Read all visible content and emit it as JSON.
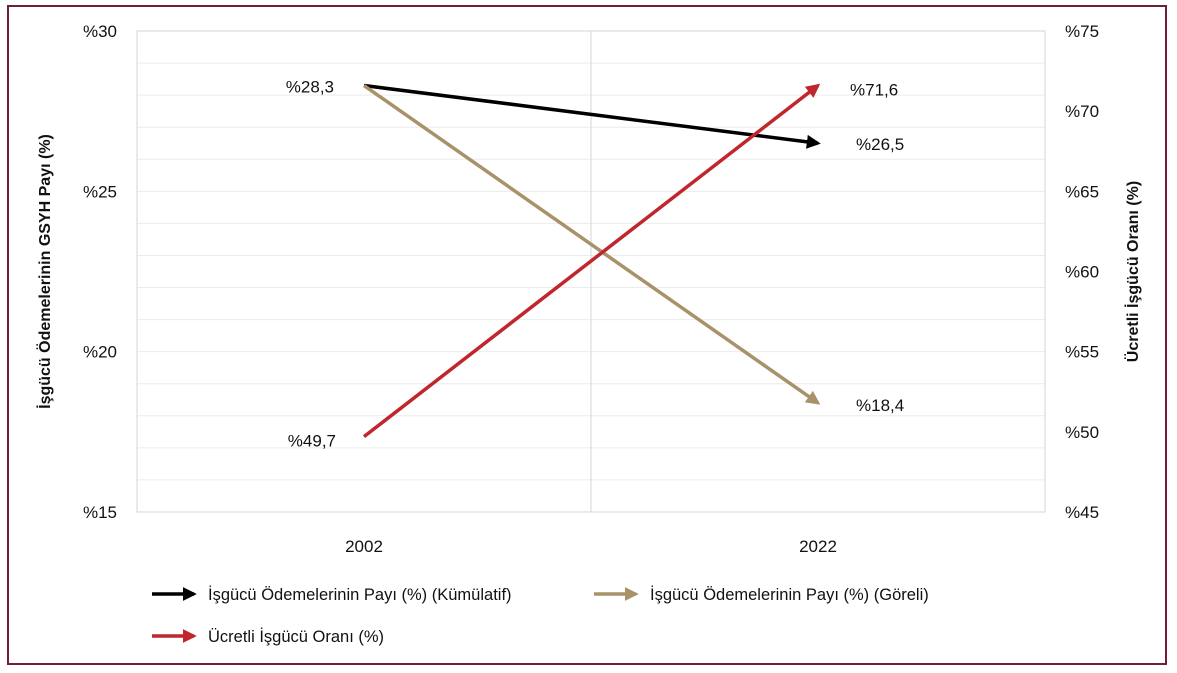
{
  "chart_data": {
    "type": "line",
    "categories": [
      "2002",
      "2022"
    ],
    "left_axis": {
      "title": "İşgücü Ödemelerinin GSYH Payı (%)",
      "min": 15,
      "max": 30,
      "step": 5,
      "tick_labels": [
        "%15",
        "%20",
        "%25",
        "%30"
      ]
    },
    "right_axis": {
      "title": "Ücretli İşgücü Oranı (%)",
      "min": 45,
      "max": 75,
      "step": 5,
      "tick_labels": [
        "%45",
        "%50",
        "%55",
        "%60",
        "%65",
        "%70",
        "%75"
      ]
    },
    "grid": true,
    "legend_position": "bottom",
    "series": [
      {
        "name": "İşgücü Ödemelerinin Payı (%) (Kümülatif)",
        "axis": "left",
        "values": [
          28.3,
          26.5
        ],
        "labels": [
          "%28,3",
          "%26,5"
        ],
        "color": "#000000"
      },
      {
        "name": "İşgücü Ödemelerinin Payı (%) (Göreli)",
        "axis": "left",
        "values": [
          28.3,
          18.4
        ],
        "labels": [
          "",
          "%18,4"
        ],
        "color": "#a8926a"
      },
      {
        "name": "Ücretli İşgücü Oranı (%)",
        "axis": "right",
        "values": [
          49.7,
          71.6
        ],
        "labels": [
          "%49,7",
          "%71,6"
        ],
        "color": "#c0262d"
      }
    ]
  }
}
